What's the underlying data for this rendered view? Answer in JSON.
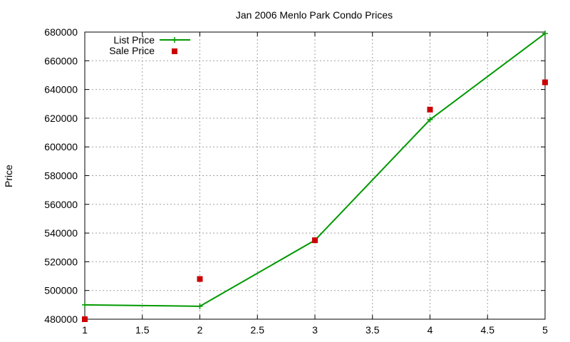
{
  "chart_data": {
    "type": "line",
    "title": "Jan 2006 Menlo Park Condo Prices",
    "xlabel": "",
    "ylabel": "Price",
    "xlim": [
      1,
      5
    ],
    "ylim": [
      480000,
      680000
    ],
    "x_ticks": [
      "1",
      "1.5",
      "2",
      "2.5",
      "3",
      "3.5",
      "4",
      "4.5",
      "5"
    ],
    "y_ticks": [
      "480000",
      "500000",
      "520000",
      "540000",
      "560000",
      "580000",
      "600000",
      "620000",
      "640000",
      "660000",
      "680000"
    ],
    "grid": true,
    "legend_position": "top-left",
    "series": [
      {
        "name": "List Price",
        "style": "linespoints",
        "marker": "plus",
        "color": "#009900",
        "x": [
          1,
          2,
          3,
          4,
          5
        ],
        "y": [
          490000,
          489000,
          535000,
          619000,
          679000
        ]
      },
      {
        "name": "Sale Price",
        "style": "points",
        "marker": "square",
        "color": "#cc0000",
        "x": [
          1,
          2,
          3,
          4,
          5
        ],
        "y": [
          480000,
          508000,
          535000,
          626000,
          645000
        ]
      }
    ]
  }
}
